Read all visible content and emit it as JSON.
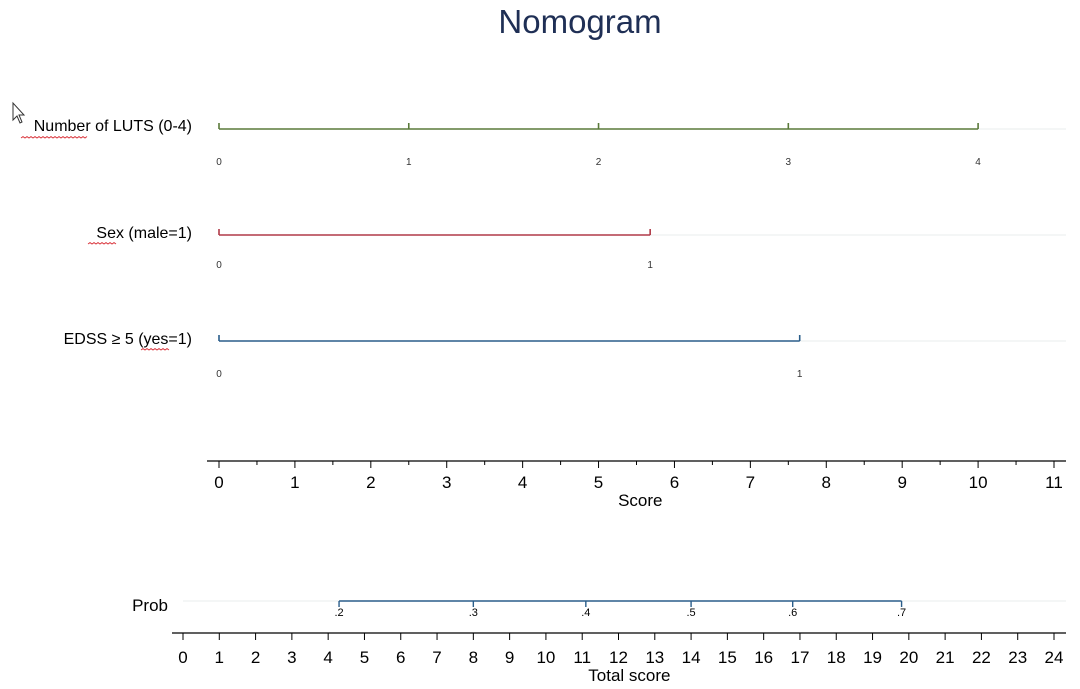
{
  "chart_data": {
    "type": "nomogram",
    "title": "Nomogram",
    "colors": {
      "title": "#1f2f55",
      "lines": [
        "#5a7a3a",
        "#b03a48",
        "#2a5d8a"
      ],
      "prob_line": "#2a5d8a",
      "axis": "#000000"
    },
    "variables": [
      {
        "label": "Number of LUTS (0-4)",
        "values": [
          0,
          1,
          2,
          3,
          4
        ],
        "tick_labels": [
          "0",
          "1",
          "2",
          "3",
          "4"
        ],
        "points": [
          0,
          2.5,
          5,
          7.5,
          10
        ]
      },
      {
        "label": "Sex (male=1)",
        "values": [
          0,
          1
        ],
        "tick_labels": [
          "0",
          "1"
        ],
        "points": [
          0,
          5.68
        ]
      },
      {
        "label": "EDSS ≥ 5 (yes=1)",
        "values": [
          0,
          1
        ],
        "tick_labels": [
          "0",
          "1"
        ],
        "points": [
          0,
          7.65
        ]
      }
    ],
    "score_axis": {
      "title": "Score",
      "range": [
        0,
        11
      ],
      "ticks": [
        0,
        1,
        2,
        3,
        4,
        5,
        6,
        7,
        8,
        9,
        10,
        11
      ],
      "tick_labels": [
        "0",
        "1",
        "2",
        "3",
        "4",
        "5",
        "6",
        "7",
        "8",
        "9",
        "10",
        "11"
      ]
    },
    "probability": {
      "label": "Prob",
      "tick_labels": [
        ".2",
        ".3",
        ".4",
        ".5",
        ".6",
        ".7"
      ],
      "total_scores": [
        4.3,
        8.0,
        11.1,
        14.0,
        16.8,
        19.8
      ]
    },
    "total_score_axis": {
      "title": "Total score",
      "range": [
        0,
        24
      ],
      "ticks": [
        0,
        1,
        2,
        3,
        4,
        5,
        6,
        7,
        8,
        9,
        10,
        11,
        12,
        13,
        14,
        15,
        16,
        17,
        18,
        19,
        20,
        21,
        22,
        23,
        24
      ],
      "tick_labels": [
        "0",
        "1",
        "2",
        "3",
        "4",
        "5",
        "6",
        "7",
        "8",
        "9",
        "10",
        "11",
        "12",
        "13",
        "14",
        "15",
        "16",
        "17",
        "18",
        "19",
        "20",
        "21",
        "22",
        "23",
        "24"
      ]
    }
  }
}
